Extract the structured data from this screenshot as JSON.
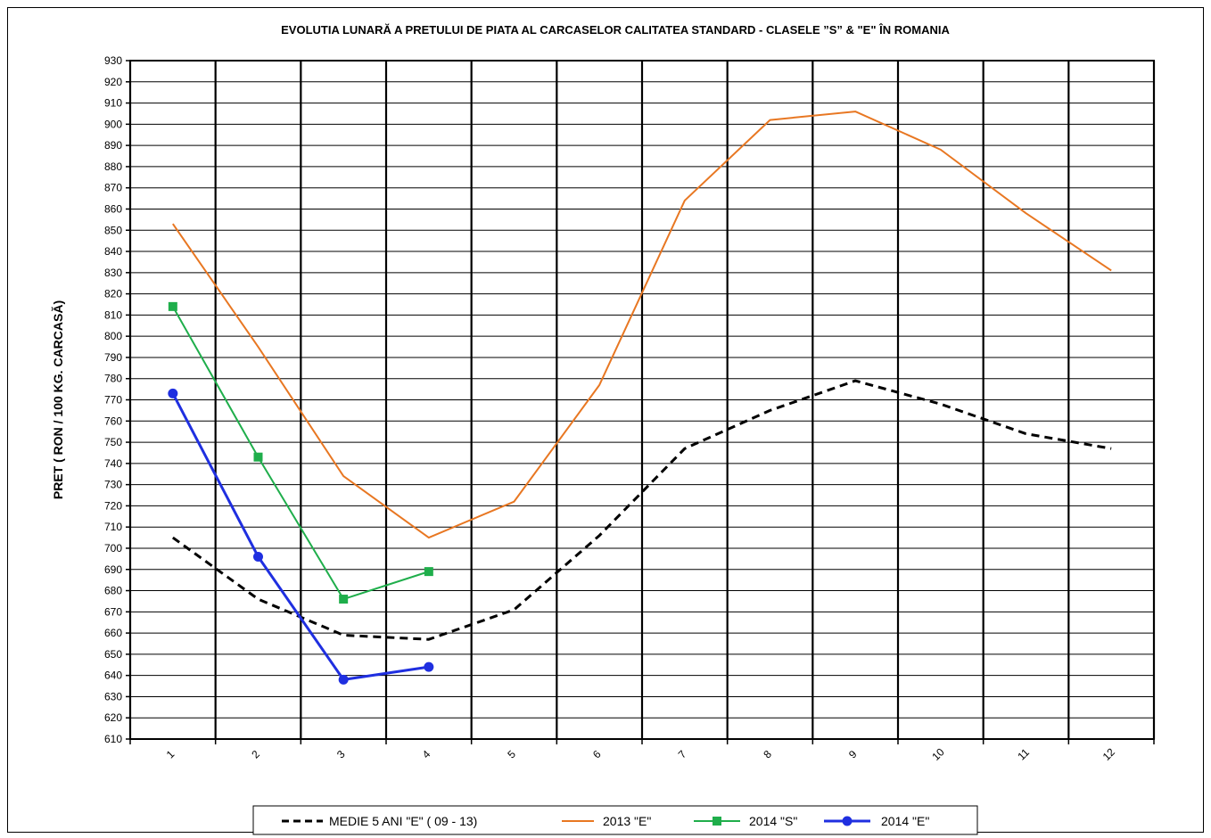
{
  "chart_data": {
    "type": "line",
    "title": "EVOLUTIA LUNARĂ A PRETULUI  DE PIATA  AL CARCASELOR CALITATEA STANDARD - CLASELE ”S” & \"E\"  ÎN ROMANIA",
    "xlabel": "",
    "ylabel": "PRET ( RON / 100 KG. CARCASĂ)",
    "x": [
      1,
      2,
      3,
      4,
      5,
      6,
      7,
      8,
      9,
      10,
      11,
      12
    ],
    "x_tick_labels": [
      "1",
      "2",
      "3",
      "4",
      "5",
      "6",
      "7",
      "8",
      "9",
      "10",
      "11",
      "12"
    ],
    "ylim": [
      610,
      930
    ],
    "y_ticks": [
      610,
      620,
      630,
      640,
      650,
      660,
      670,
      680,
      690,
      700,
      710,
      720,
      730,
      740,
      750,
      760,
      770,
      780,
      790,
      800,
      810,
      820,
      830,
      840,
      850,
      860,
      870,
      880,
      890,
      900,
      910,
      920,
      930
    ],
    "grid": true,
    "legend_position": "bottom",
    "series": [
      {
        "name": "MEDIE 5 ANI \"E\" ( 09 - 13)",
        "color": "#000000",
        "style": "dashed",
        "marker": "none",
        "values": [
          705,
          676,
          659,
          657,
          671,
          706,
          747,
          765,
          779,
          768,
          754,
          747
        ]
      },
      {
        "name": "2013 \"E\"",
        "color": "#E87722",
        "style": "solid",
        "marker": "none",
        "values": [
          853,
          795,
          734,
          705,
          722,
          777,
          864,
          902,
          906,
          888,
          858,
          831
        ]
      },
      {
        "name": "2014 \"S\"",
        "color": "#1FAE4B",
        "style": "solid",
        "marker": "square",
        "values": [
          814,
          743,
          676,
          689,
          null,
          null,
          null,
          null,
          null,
          null,
          null,
          null
        ]
      },
      {
        "name": "2014 \"E\"",
        "color": "#1F2FE0",
        "style": "solid",
        "marker": "circle",
        "values": [
          773,
          696,
          638,
          644,
          null,
          null,
          null,
          null,
          null,
          null,
          null,
          null
        ]
      }
    ]
  }
}
